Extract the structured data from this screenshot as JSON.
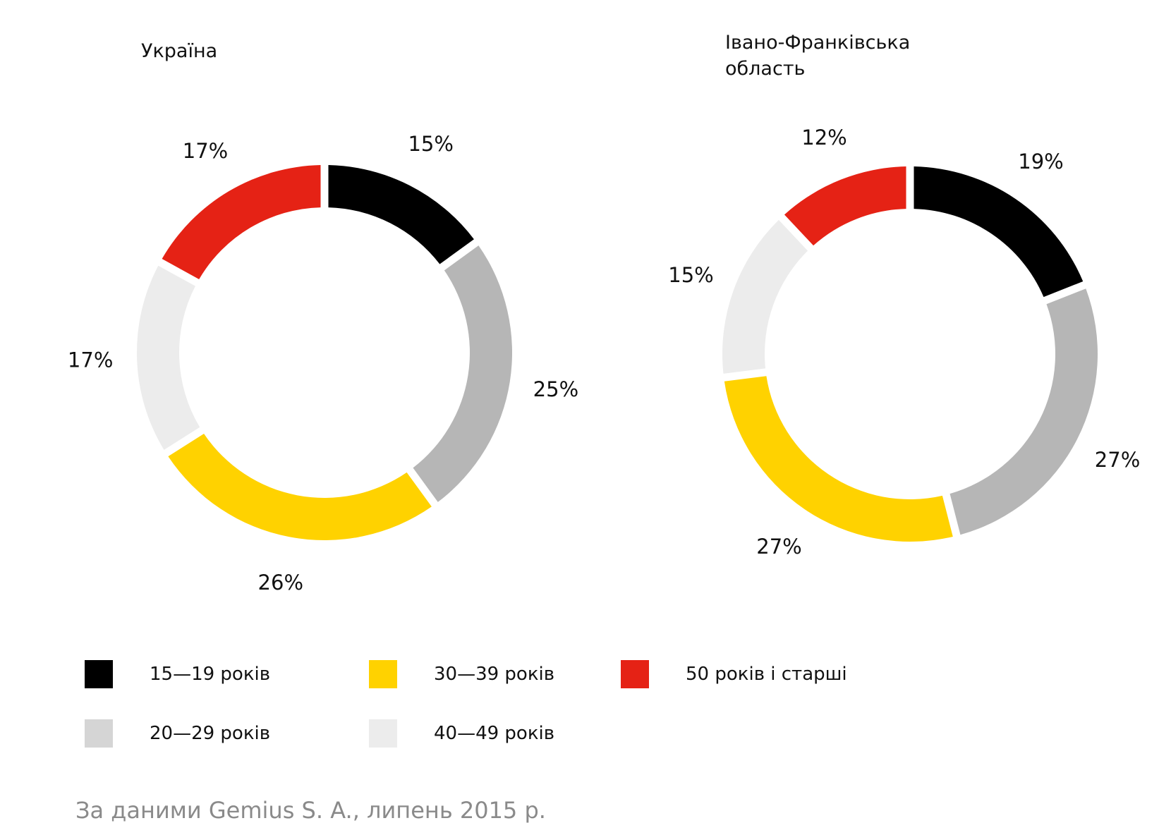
{
  "colors": {
    "black": "#000000",
    "gray": "#b6b6b6",
    "yellow": "#ffd200",
    "light": "#ececec",
    "red": "#e52215"
  },
  "chart_data": [
    {
      "type": "donut",
      "title": "Україна",
      "categories": [
        "15—19 років",
        "20—29 років",
        "30—39 років",
        "40—49 років",
        "50 років і старші"
      ],
      "values": [
        15,
        25,
        26,
        17,
        17
      ],
      "labels": [
        "15%",
        "25%",
        "26%",
        "17%",
        "17%"
      ]
    },
    {
      "type": "donut",
      "title": "Івано-Франківська\nобласть",
      "categories": [
        "15—19 років",
        "20—29 років",
        "30—39 років",
        "40—49 років",
        "50 років і старші"
      ],
      "values": [
        19,
        27,
        27,
        15,
        12
      ],
      "labels": [
        "19%",
        "27%",
        "27%",
        "15%",
        "12%"
      ]
    }
  ],
  "legend": [
    {
      "label": "15—19 років",
      "color": "#000000"
    },
    {
      "label": "20—29 років",
      "color": "#d5d5d5"
    },
    {
      "label": "30—39 років",
      "color": "#ffd200"
    },
    {
      "label": "40—49 років",
      "color": "#ececec"
    },
    {
      "label": "50 років і старші",
      "color": "#e52215"
    }
  ],
  "source": "За даними Gemius S. A., липень 2015 р."
}
